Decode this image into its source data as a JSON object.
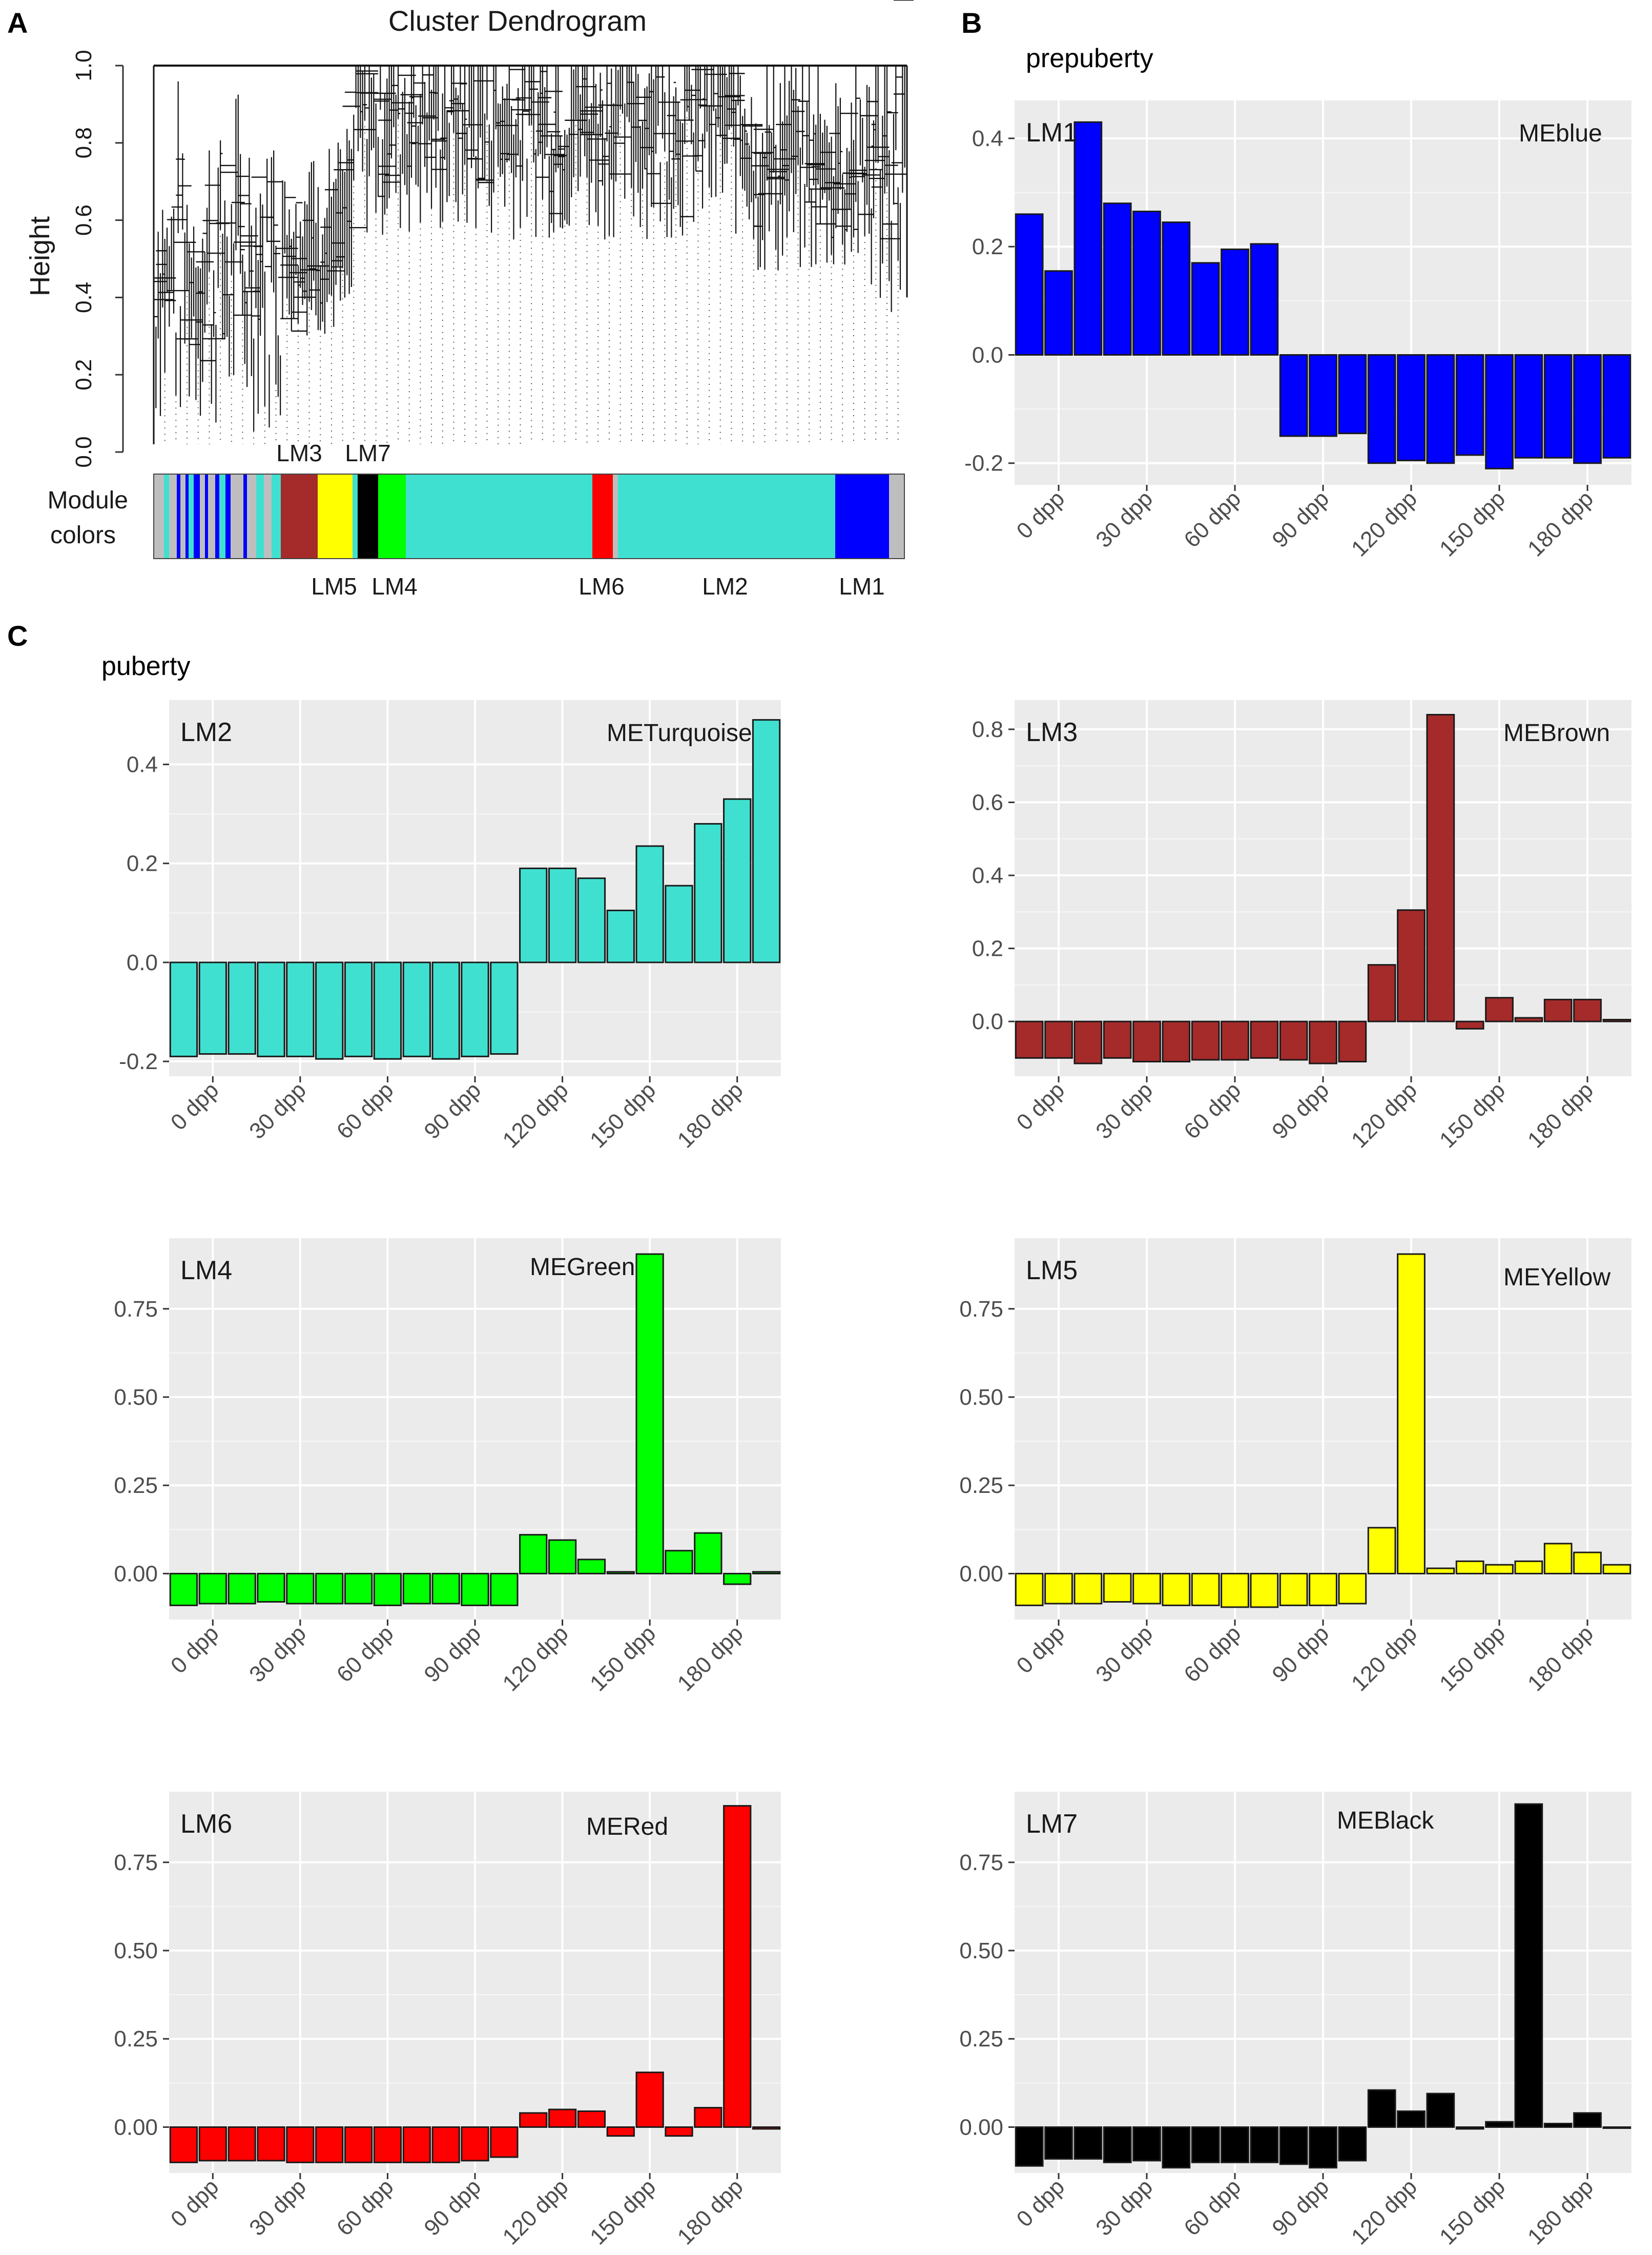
{
  "panels": {
    "a": "A",
    "b": "B",
    "c": "C",
    "prepuberty": "prepuberty",
    "puberty": "puberty"
  },
  "dendrogram": {
    "title": "Cluster Dendrogram",
    "ylabel": "Height",
    "yticks": [
      "0.0",
      "0.2",
      "0.4",
      "0.6",
      "0.8",
      "1.0"
    ],
    "colors_label_1": "Module",
    "colors_label_2": "colors",
    "module_labels": [
      {
        "label": "LM3",
        "color": "#a52a2a"
      },
      {
        "label": "LM7",
        "color": "#000000"
      },
      {
        "label": "LM5",
        "color": "#ffff00"
      },
      {
        "label": "LM4",
        "color": "#00ff00"
      },
      {
        "label": "LM6",
        "color": "#ff0000"
      },
      {
        "label": "LM2",
        "color": "#40e0d0"
      },
      {
        "label": "LM1",
        "color": "#0000ff"
      }
    ]
  },
  "chart_data": [
    {
      "type": "bar",
      "module": "LM1",
      "eigengene": "MEblue",
      "color": "#0000ff",
      "xticks": [
        "0 dpp",
        "30 dpp",
        "60 dpp",
        "90 dpp",
        "120 dpp",
        "150 dpp",
        "180 dpp"
      ],
      "yticks": [
        "-0.2",
        "0.0",
        "0.2",
        "0.4"
      ],
      "ylim": [
        -0.24,
        0.47
      ],
      "values": [
        0.26,
        0.155,
        0.43,
        0.28,
        0.265,
        0.245,
        0.17,
        0.195,
        0.205,
        -0.15,
        -0.15,
        -0.145,
        -0.2,
        -0.195,
        -0.2,
        -0.185,
        -0.21,
        -0.19,
        -0.19,
        -0.2,
        -0.19
      ]
    },
    {
      "type": "bar",
      "module": "LM2",
      "eigengene": "METurquoise",
      "color": "#40e0d0",
      "xticks": [
        "0 dpp",
        "30 dpp",
        "60 dpp",
        "90 dpp",
        "120 dpp",
        "150 dpp",
        "180 dpp"
      ],
      "yticks": [
        "-0.2",
        "0.0",
        "0.2",
        "0.4"
      ],
      "ylim": [
        -0.23,
        0.53
      ],
      "values": [
        -0.19,
        -0.185,
        -0.185,
        -0.19,
        -0.19,
        -0.195,
        -0.19,
        -0.195,
        -0.19,
        -0.195,
        -0.19,
        -0.185,
        0.19,
        0.19,
        0.17,
        0.105,
        0.235,
        0.155,
        0.28,
        0.33,
        0.49
      ]
    },
    {
      "type": "bar",
      "module": "LM3",
      "eigengene": "MEBrown",
      "color": "#a52a2a",
      "xticks": [
        "0 dpp",
        "30 dpp",
        "60 dpp",
        "90 dpp",
        "120 dpp",
        "150 dpp",
        "180 dpp"
      ],
      "yticks": [
        "0.0",
        "0.2",
        "0.4",
        "0.6",
        "0.8"
      ],
      "ylim": [
        -0.15,
        0.88
      ],
      "values": [
        -0.1,
        -0.1,
        -0.115,
        -0.1,
        -0.11,
        -0.11,
        -0.105,
        -0.105,
        -0.1,
        -0.105,
        -0.115,
        -0.11,
        0.155,
        0.305,
        0.84,
        -0.02,
        0.065,
        0.01,
        0.06,
        0.06,
        0.005
      ]
    },
    {
      "type": "bar",
      "module": "LM4",
      "eigengene": "MEGreen",
      "color": "#00ff00",
      "xticks": [
        "0 dpp",
        "30 dpp",
        "60 dpp",
        "90 dpp",
        "120 dpp",
        "150 dpp",
        "180 dpp"
      ],
      "yticks": [
        "0.00",
        "0.25",
        "0.50",
        "0.75"
      ],
      "ylim": [
        -0.13,
        0.95
      ],
      "values": [
        -0.09,
        -0.085,
        -0.085,
        -0.08,
        -0.085,
        -0.085,
        -0.085,
        -0.09,
        -0.085,
        -0.085,
        -0.09,
        -0.09,
        0.11,
        0.095,
        0.04,
        0.005,
        0.905,
        0.065,
        0.115,
        -0.03,
        0.005
      ]
    },
    {
      "type": "bar",
      "module": "LM5",
      "eigengene": "MEYellow",
      "color": "#ffff00",
      "xticks": [
        "0 dpp",
        "30 dpp",
        "60 dpp",
        "90 dpp",
        "120 dpp",
        "150 dpp",
        "180 dpp"
      ],
      "yticks": [
        "0.00",
        "0.25",
        "0.50",
        "0.75"
      ],
      "ylim": [
        -0.13,
        0.95
      ],
      "values": [
        -0.09,
        -0.085,
        -0.085,
        -0.08,
        -0.085,
        -0.09,
        -0.09,
        -0.095,
        -0.095,
        -0.09,
        -0.09,
        -0.085,
        0.13,
        0.905,
        0.015,
        0.035,
        0.025,
        0.035,
        0.085,
        0.06,
        0.025
      ]
    },
    {
      "type": "bar",
      "module": "LM6",
      "eigengene": "MERed",
      "color": "#ff0000",
      "xticks": [
        "0 dpp",
        "30 dpp",
        "60 dpp",
        "90 dpp",
        "120 dpp",
        "150 dpp",
        "180 dpp"
      ],
      "yticks": [
        "0.00",
        "0.25",
        "0.50",
        "0.75"
      ],
      "ylim": [
        -0.13,
        0.95
      ],
      "values": [
        -0.1,
        -0.095,
        -0.095,
        -0.095,
        -0.1,
        -0.1,
        -0.1,
        -0.1,
        -0.1,
        -0.1,
        -0.095,
        -0.085,
        0.04,
        0.05,
        0.045,
        -0.025,
        0.155,
        -0.025,
        0.055,
        0.91,
        -0.005
      ]
    },
    {
      "type": "bar",
      "module": "LM7",
      "eigengene": "MEBlack",
      "color": "#000000",
      "xticks": [
        "0 dpp",
        "30 dpp",
        "60 dpp",
        "90 dpp",
        "120 dpp",
        "150 dpp",
        "180 dpp"
      ],
      "yticks": [
        "0.00",
        "0.25",
        "0.50",
        "0.75"
      ],
      "ylim": [
        -0.13,
        0.95
      ],
      "values": [
        -0.11,
        -0.09,
        -0.09,
        -0.1,
        -0.095,
        -0.115,
        -0.1,
        -0.1,
        -0.1,
        -0.105,
        -0.115,
        -0.095,
        0.105,
        0.045,
        0.095,
        -0.005,
        0.015,
        0.915,
        0.01,
        0.04,
        0.0
      ]
    }
  ]
}
